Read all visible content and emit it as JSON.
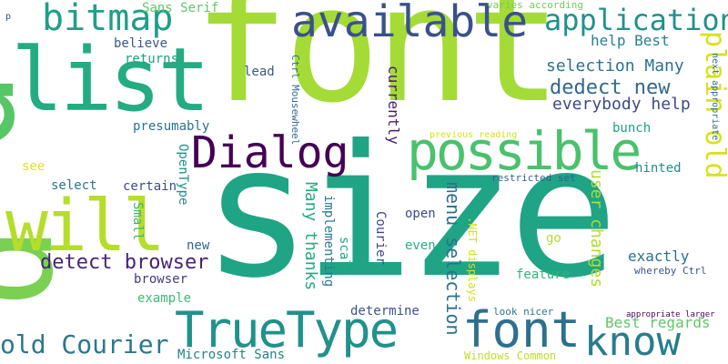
{
  "wordcloud": {
    "words": [
      {
        "text": "size",
        "color": "#20a486"
      },
      {
        "text": "font",
        "color": "#a5db36"
      },
      {
        "text": "p",
        "color": "#57c665"
      },
      {
        "text": "p",
        "color": "#7ad151"
      },
      {
        "text": "list",
        "color": "#25ab82"
      },
      {
        "text": "will",
        "color": "#b5de2b"
      },
      {
        "text": "available",
        "color": "#3b518b"
      },
      {
        "text": "bitmap",
        "color": "#1f9f88"
      },
      {
        "text": "application",
        "color": "#21918c"
      },
      {
        "text": "possible",
        "color": "#4ac16d"
      },
      {
        "text": "Dialog",
        "color": "#440154"
      },
      {
        "text": "TrueType",
        "color": "#21918c"
      },
      {
        "text": "font",
        "color": "#2d708e"
      },
      {
        "text": "know",
        "color": "#287d8e"
      },
      {
        "text": "old Courier",
        "color": "#2a788e"
      },
      {
        "text": "plain old",
        "color": "#d8e219"
      },
      {
        "text": "dedect new",
        "color": "#31688e"
      },
      {
        "text": "selection Many",
        "color": "#2c728e"
      },
      {
        "text": "everybody help",
        "color": "#3e4989"
      },
      {
        "text": "help Best",
        "color": "#26828e"
      },
      {
        "text": "detect browser",
        "color": "#482475"
      },
      {
        "text": "Sans Serif",
        "color": "#5ec962"
      },
      {
        "text": "varies according",
        "color": "#6ece58"
      },
      {
        "text": "believe",
        "color": "#38588c"
      },
      {
        "text": "returns",
        "color": "#1fa188"
      },
      {
        "text": "presumably",
        "color": "#2c728e"
      },
      {
        "text": "lead",
        "color": "#38598c"
      },
      {
        "text": "Ctrl Mousewheel",
        "color": "#306a8e"
      },
      {
        "text": "currently",
        "color": "#481a6c"
      },
      {
        "text": "menu selection",
        "color": "#2c718e"
      },
      {
        "text": "user changes",
        "color": "#b0dd2f"
      },
      {
        "text": "Many thanks",
        "color": "#25ab82"
      },
      {
        "text": "implementing",
        "color": "#297a8e"
      },
      {
        "text": "scale",
        "color": "#22a884"
      },
      {
        "text": "Courier",
        "color": "#3f4788"
      },
      {
        "text": "OpenType",
        "color": "#21918c"
      },
      {
        "text": "certain",
        "color": "#3c4f8a"
      },
      {
        "text": "select",
        "color": "#2a768e"
      },
      {
        "text": "see",
        "color": "#dde318"
      },
      {
        "text": "Small",
        "color": "#35b779"
      },
      {
        "text": "new",
        "color": "#33638d"
      },
      {
        "text": "browser",
        "color": "#443a83"
      },
      {
        "text": "example",
        "color": "#3dbc74"
      },
      {
        "text": "open",
        "color": "#3e4a89"
      },
      {
        "text": "even",
        "color": "#29af7f"
      },
      {
        "text": "determine",
        "color": "#3b528b"
      },
      {
        "text": "Microsoft Sans",
        "color": "#26828e"
      },
      {
        "text": "Windows Common",
        "color": "#c2df23"
      },
      {
        "text": ".NET displays",
        "color": "#d2e21b"
      },
      {
        "text": "look nicer",
        "color": "#2a788e"
      },
      {
        "text": "Best regards",
        "color": "#5ec962"
      },
      {
        "text": "exactly",
        "color": "#2d708e"
      },
      {
        "text": "feature",
        "color": "#31b57b"
      },
      {
        "text": "hinted",
        "color": "#228c8d"
      },
      {
        "text": "go",
        "color": "#b5de2b"
      },
      {
        "text": "bunch",
        "color": "#1fa187"
      },
      {
        "text": "restricted set",
        "color": "#355f8d"
      },
      {
        "text": "previous reading",
        "color": "#d5e21a"
      },
      {
        "text": "whereby Ctrl",
        "color": "#3a548c"
      },
      {
        "text": "appropriate larger",
        "color": "#46085c"
      },
      {
        "text": "next appropriate",
        "color": "#2e6f8e"
      },
      {
        "text": "p",
        "color": "#3d4e8a"
      }
    ]
  }
}
